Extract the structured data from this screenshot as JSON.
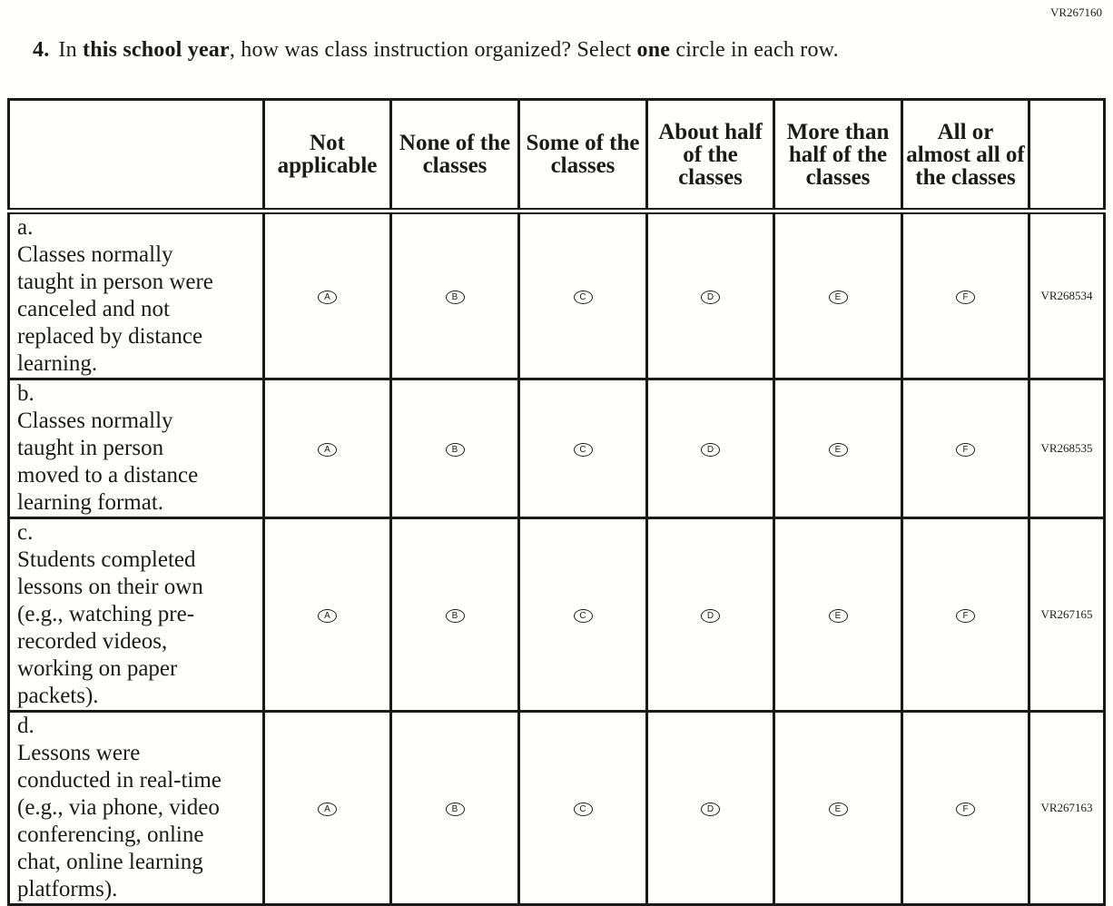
{
  "doc_id": "VR267160",
  "question": {
    "number": "4.",
    "parts": [
      "In ",
      "this school year",
      ", how was class instruction organized? Select ",
      "one",
      " circle in each row."
    ]
  },
  "columns": [
    "Not applicable",
    "None of the classes",
    "Some of the classes",
    "About half of the classes",
    "More than half of the classes",
    "All or almost all of the classes"
  ],
  "options": [
    "A",
    "B",
    "C",
    "D",
    "E",
    "F"
  ],
  "rows": [
    {
      "label": "a.",
      "text": "Classes normally taught in person were canceled and not replaced by distance learning.",
      "code": "VR268534"
    },
    {
      "label": "b.",
      "text": "Classes normally taught in person moved to a distance learning format.",
      "code": "VR268535"
    },
    {
      "label": "c.",
      "text": "Students completed lessons on their own (e.g., watching pre-recorded videos, working on paper packets).",
      "code": "VR267165"
    },
    {
      "label": "d.",
      "text": "Lessons were conducted in real-time (e.g., via phone, video conferencing, online chat, online learning platforms).",
      "code": "VR267163"
    }
  ]
}
